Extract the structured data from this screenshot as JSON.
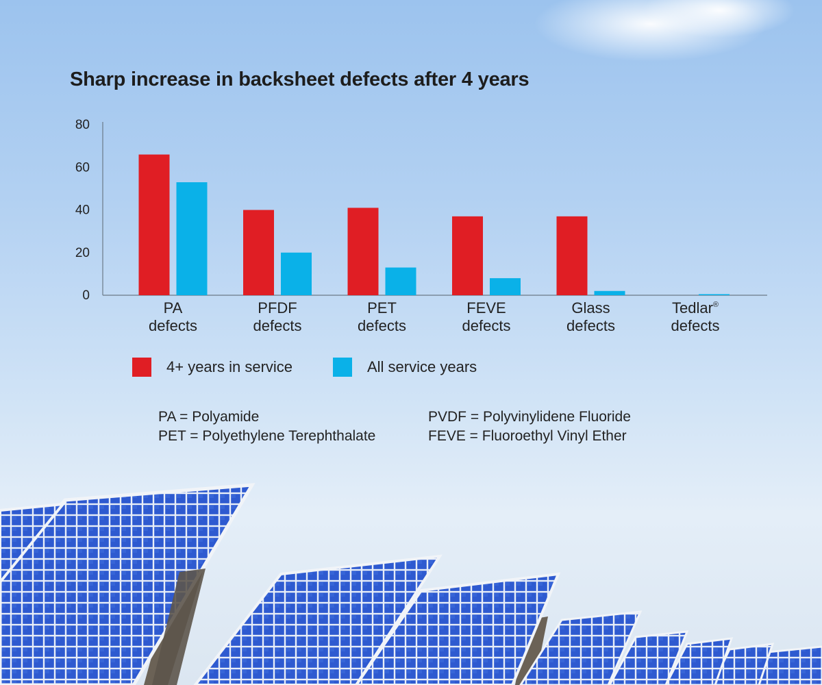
{
  "chart_data": {
    "type": "bar",
    "title": "Sharp increase in backsheet defects after 4 years",
    "categories": [
      {
        "line1": "PA",
        "line2": "defects",
        "sup": ""
      },
      {
        "line1": "PFDF",
        "line2": "defects",
        "sup": ""
      },
      {
        "line1": "PET",
        "line2": "defects",
        "sup": ""
      },
      {
        "line1": "FEVE",
        "line2": "defects",
        "sup": ""
      },
      {
        "line1": "Glass",
        "line2": "defects",
        "sup": ""
      },
      {
        "line1": "Tedlar",
        "line2": "defects",
        "sup": "®"
      }
    ],
    "series": [
      {
        "name": "4+ years in service",
        "color": "#e01e24",
        "values": [
          66,
          40,
          41,
          37,
          37,
          0
        ]
      },
      {
        "name": "All service years",
        "color": "#0ab1e8",
        "values": [
          53,
          20,
          13,
          8,
          2,
          0.5
        ]
      }
    ],
    "ylim": [
      0,
      80
    ],
    "yticks": [
      "0",
      "20",
      "40",
      "60",
      "80"
    ],
    "grid": false,
    "legend_position": "bottom"
  },
  "abbreviations": {
    "left": [
      "PA = Polyamide",
      "PET = Polyethylene Terephthalate"
    ],
    "right": [
      "PVDF = Polyvinylidene Fluoride",
      "FEVE = Fluoroethyl Vinyl Ether"
    ]
  }
}
